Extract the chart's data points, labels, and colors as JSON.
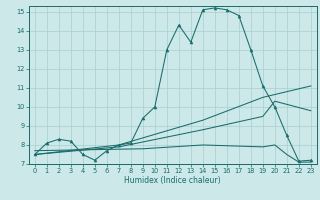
{
  "xlabel": "Humidex (Indice chaleur)",
  "bg_color": "#cce8e8",
  "grid_color": "#a8cece",
  "line_color": "#1a6b6b",
  "xlim": [
    -0.5,
    23.5
  ],
  "ylim": [
    7,
    15.3
  ],
  "yticks": [
    7,
    8,
    9,
    10,
    11,
    12,
    13,
    14,
    15
  ],
  "xticks": [
    0,
    1,
    2,
    3,
    4,
    5,
    6,
    7,
    8,
    9,
    10,
    11,
    12,
    13,
    14,
    15,
    16,
    17,
    18,
    19,
    20,
    21,
    22,
    23
  ],
  "main_x": [
    0,
    1,
    2,
    3,
    4,
    5,
    6,
    7,
    8,
    9,
    10,
    11,
    12,
    13,
    14,
    15,
    16,
    17,
    18,
    19,
    20,
    21,
    22,
    23
  ],
  "main_y": [
    7.5,
    8.1,
    8.3,
    8.2,
    7.5,
    7.2,
    7.7,
    8.0,
    8.1,
    9.4,
    10.0,
    13.0,
    14.3,
    13.4,
    15.1,
    15.2,
    15.1,
    14.8,
    13.0,
    11.1,
    10.0,
    8.5,
    7.15,
    7.2
  ],
  "line2_x": [
    0,
    7,
    14,
    19,
    23
  ],
  "line2_y": [
    7.5,
    8.0,
    9.3,
    10.5,
    11.1
  ],
  "line3_x": [
    0,
    7,
    14,
    19,
    20,
    23
  ],
  "line3_y": [
    7.5,
    7.9,
    8.8,
    9.5,
    10.3,
    9.8
  ],
  "line4_x": [
    0,
    9,
    14,
    19,
    20,
    21,
    22,
    23
  ],
  "line4_y": [
    7.7,
    7.8,
    8.0,
    7.9,
    8.0,
    7.5,
    7.1,
    7.1
  ]
}
